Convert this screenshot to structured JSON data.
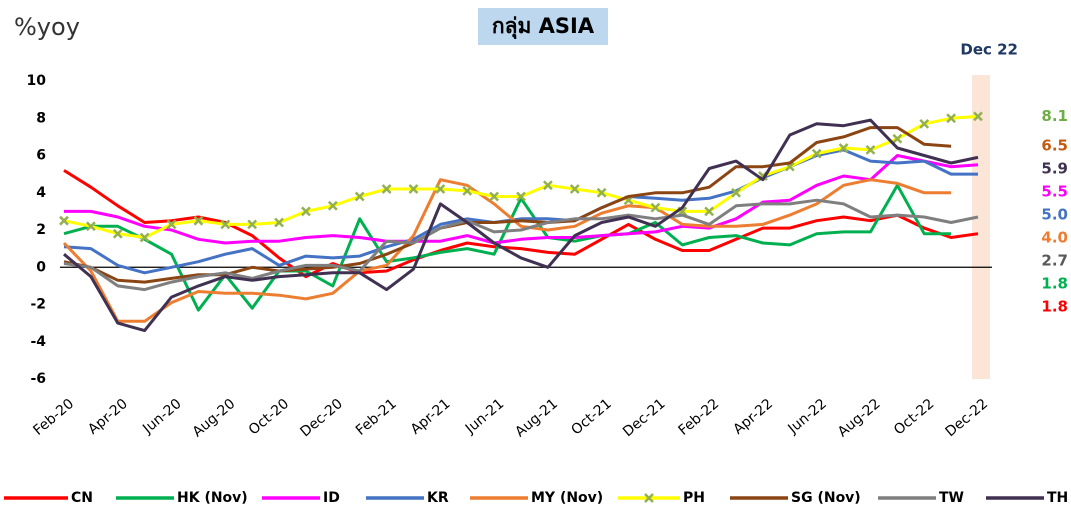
{
  "chart_data": {
    "type": "line",
    "title": "กลุ่ม ASIA",
    "y_label": "%yoy",
    "annotation": "Dec 22",
    "categories": [
      "Feb-20",
      null,
      "Apr-20",
      null,
      "Jun-20",
      null,
      "Aug-20",
      null,
      "Oct-20",
      null,
      "Dec-20",
      null,
      "Feb-21",
      null,
      "Apr-21",
      null,
      "Jun-21",
      null,
      "Aug-21",
      null,
      "Oct-21",
      null,
      "Dec-21",
      null,
      "Feb-22",
      null,
      "Apr-22",
      null,
      "Jun-22",
      null,
      "Aug-22",
      null,
      "Oct-22",
      null,
      "Dec-22"
    ],
    "ylim": [
      -6,
      10
    ],
    "yticks": [
      -6,
      -4,
      -2,
      0,
      2,
      4,
      6,
      8,
      10
    ],
    "grid": false,
    "legend": "bottom",
    "series": [
      {
        "name": "CN",
        "color": "#ff0000",
        "label_color": "#ff0000",
        "values": [
          5.2,
          4.3,
          3.3,
          2.4,
          2.5,
          2.7,
          2.4,
          1.7,
          0.5,
          -0.5,
          0.2,
          -0.3,
          -0.2,
          0.4,
          0.9,
          1.3,
          1.1,
          1.0,
          0.8,
          0.7,
          1.5,
          2.3,
          1.5,
          0.9,
          0.9,
          1.5,
          2.1,
          2.1,
          2.5,
          2.7,
          2.5,
          2.8,
          2.1,
          1.6,
          1.8
        ],
        "value_labels": [
          null,
          null,
          null,
          null,
          null,
          null,
          null,
          null,
          null,
          null,
          null,
          null,
          null,
          null,
          null,
          null,
          null,
          null,
          null,
          null,
          null,
          null,
          null,
          null,
          null,
          null,
          null,
          null,
          null,
          null,
          null,
          null,
          null,
          null,
          "1.8"
        ]
      },
      {
        "name": "HK (Nov)",
        "color": "#00b050",
        "label_color": "#00b050",
        "values": [
          1.8,
          2.2,
          2.2,
          1.5,
          0.7,
          -2.3,
          -0.4,
          -2.2,
          -0.2,
          -0.2,
          -1.0,
          2.6,
          0.3,
          0.5,
          0.8,
          1.0,
          0.7,
          3.7,
          1.6,
          1.4,
          1.7,
          1.8,
          2.4,
          1.2,
          1.6,
          1.7,
          1.3,
          1.2,
          1.8,
          1.9,
          1.9,
          4.4,
          1.8,
          1.8,
          null
        ],
        "value_labels": [
          null,
          null,
          null,
          null,
          null,
          null,
          null,
          null,
          null,
          null,
          null,
          null,
          null,
          null,
          null,
          null,
          null,
          null,
          null,
          null,
          null,
          null,
          null,
          null,
          null,
          null,
          null,
          null,
          null,
          null,
          null,
          null,
          null,
          "1.8",
          null
        ]
      },
      {
        "name": "ID",
        "color": "#ff00ff",
        "label_color": "#ff00ff",
        "values": [
          3.0,
          3.0,
          2.7,
          2.2,
          2.0,
          1.5,
          1.3,
          1.4,
          1.4,
          1.6,
          1.7,
          1.6,
          1.4,
          1.4,
          1.4,
          1.7,
          1.3,
          1.5,
          1.6,
          1.6,
          1.7,
          1.8,
          1.9,
          2.2,
          2.1,
          2.6,
          3.5,
          3.6,
          4.4,
          4.9,
          4.7,
          6.0,
          5.7,
          5.4,
          5.5
        ],
        "value_labels": [
          null,
          null,
          null,
          null,
          null,
          null,
          null,
          null,
          null,
          null,
          null,
          null,
          null,
          null,
          null,
          null,
          null,
          null,
          null,
          null,
          null,
          null,
          null,
          null,
          null,
          null,
          null,
          null,
          null,
          null,
          null,
          null,
          null,
          null,
          "5.5"
        ]
      },
      {
        "name": "KR",
        "color": "#4472c4",
        "label_color": "#4472c4",
        "values": [
          1.1,
          1.0,
          0.1,
          -0.3,
          0.0,
          0.3,
          0.7,
          1.0,
          0.1,
          0.6,
          0.5,
          0.6,
          1.1,
          1.5,
          2.3,
          2.6,
          2.4,
          2.6,
          2.6,
          2.5,
          3.2,
          3.8,
          3.7,
          3.6,
          3.7,
          4.1,
          4.8,
          5.4,
          6.0,
          6.3,
          5.7,
          5.6,
          5.7,
          5.0,
          5.0
        ],
        "value_labels": [
          null,
          null,
          null,
          null,
          null,
          null,
          null,
          null,
          null,
          null,
          null,
          null,
          null,
          null,
          null,
          null,
          null,
          null,
          null,
          null,
          null,
          null,
          null,
          null,
          null,
          null,
          null,
          null,
          null,
          null,
          null,
          null,
          null,
          null,
          "5.0"
        ]
      },
      {
        "name": "MY (Nov)",
        "color": "#ed7d31",
        "label_color": "#ed7d31",
        "values": [
          1.3,
          -0.2,
          -2.9,
          -2.9,
          -1.9,
          -1.3,
          -1.4,
          -1.4,
          -1.5,
          -1.7,
          -1.4,
          -0.2,
          0.1,
          1.7,
          4.7,
          4.4,
          3.4,
          2.2,
          2.0,
          2.2,
          2.9,
          3.3,
          3.2,
          2.3,
          2.2,
          2.2,
          2.3,
          2.8,
          3.4,
          4.4,
          4.7,
          4.5,
          4.0,
          4.0,
          null
        ],
        "value_labels": [
          null,
          null,
          null,
          null,
          null,
          null,
          null,
          null,
          null,
          null,
          null,
          null,
          null,
          null,
          null,
          null,
          null,
          null,
          null,
          null,
          null,
          null,
          null,
          null,
          null,
          null,
          null,
          null,
          null,
          null,
          null,
          null,
          null,
          "4.0",
          null
        ]
      },
      {
        "name": "PH",
        "color": "#ffff00",
        "marker_color": "#92b050",
        "label_color": "#70ad47",
        "values": [
          2.5,
          2.2,
          1.8,
          1.6,
          2.3,
          2.5,
          2.3,
          2.3,
          2.4,
          3.0,
          3.3,
          3.8,
          4.2,
          4.2,
          4.2,
          4.1,
          3.8,
          3.8,
          4.4,
          4.2,
          4.0,
          3.6,
          3.2,
          3.0,
          3.0,
          4.0,
          4.9,
          5.4,
          6.1,
          6.4,
          6.3,
          6.9,
          7.7,
          8.0,
          8.1
        ],
        "value_labels": [
          null,
          null,
          null,
          null,
          null,
          null,
          null,
          null,
          null,
          null,
          null,
          null,
          null,
          null,
          null,
          null,
          null,
          null,
          null,
          null,
          null,
          null,
          null,
          null,
          null,
          null,
          null,
          null,
          null,
          null,
          null,
          null,
          null,
          null,
          "8.1"
        ]
      },
      {
        "name": "SG (Nov)",
        "color": "#8b4513",
        "label_color": "#c55a11",
        "values": [
          0.3,
          0.0,
          -0.7,
          -0.8,
          -0.6,
          -0.4,
          -0.4,
          0.0,
          -0.2,
          -0.1,
          0.0,
          0.2,
          0.7,
          1.3,
          2.1,
          2.4,
          2.4,
          2.5,
          2.4,
          2.5,
          3.2,
          3.8,
          4.0,
          4.0,
          4.3,
          5.4,
          5.4,
          5.6,
          6.7,
          7.0,
          7.5,
          7.5,
          6.6,
          6.5,
          null
        ],
        "value_labels": [
          null,
          null,
          null,
          null,
          null,
          null,
          null,
          null,
          null,
          null,
          null,
          null,
          null,
          null,
          null,
          null,
          null,
          null,
          null,
          null,
          null,
          null,
          null,
          null,
          null,
          null,
          null,
          null,
          null,
          null,
          null,
          null,
          null,
          "6.5",
          null
        ]
      },
      {
        "name": "TW",
        "color": "#7f7f7f",
        "label_color": "#595959",
        "values": [
          0.2,
          0.0,
          -1.0,
          -1.2,
          -0.8,
          -0.5,
          -0.3,
          -0.6,
          -0.2,
          0.1,
          0.1,
          -0.2,
          1.4,
          1.3,
          2.1,
          2.5,
          1.9,
          2.0,
          2.4,
          2.6,
          2.6,
          2.8,
          2.6,
          2.8,
          2.3,
          3.3,
          3.4,
          3.4,
          3.6,
          3.4,
          2.7,
          2.8,
          2.7,
          2.4,
          2.7
        ],
        "value_labels": [
          null,
          null,
          null,
          null,
          null,
          null,
          null,
          null,
          null,
          null,
          null,
          null,
          null,
          null,
          null,
          null,
          null,
          null,
          null,
          null,
          null,
          null,
          null,
          null,
          null,
          null,
          null,
          null,
          null,
          null,
          null,
          null,
          null,
          null,
          "2.7"
        ]
      },
      {
        "name": "TH",
        "color": "#403152",
        "label_color": "#403152",
        "values": [
          0.7,
          -0.5,
          -3.0,
          -3.4,
          -1.6,
          -1.0,
          -0.5,
          -0.7,
          -0.5,
          -0.4,
          -0.3,
          -0.3,
          -1.2,
          -0.1,
          3.4,
          2.4,
          1.3,
          0.5,
          0.0,
          1.7,
          2.4,
          2.7,
          2.2,
          3.2,
          5.3,
          5.7,
          4.7,
          7.1,
          7.7,
          7.6,
          7.9,
          6.4,
          6.0,
          5.6,
          5.9
        ],
        "value_labels": [
          null,
          null,
          null,
          null,
          null,
          null,
          null,
          null,
          null,
          null,
          null,
          null,
          null,
          null,
          null,
          null,
          null,
          null,
          null,
          null,
          null,
          null,
          null,
          null,
          null,
          null,
          null,
          null,
          null,
          null,
          null,
          null,
          null,
          null,
          "5.9"
        ]
      }
    ]
  }
}
